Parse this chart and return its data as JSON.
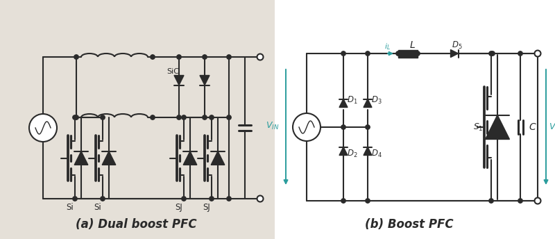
{
  "bg_left": "#e5e0d8",
  "bg_right": "#ffffff",
  "teal": "#2a9d9d",
  "black": "#2a2a2a",
  "gray": "#555555",
  "caption_left": "(a) Dual boost PFC",
  "caption_right": "(b) Boost PFC",
  "caption_fontsize": 12,
  "fig_width": 8.0,
  "fig_height": 3.44,
  "dpi": 100
}
